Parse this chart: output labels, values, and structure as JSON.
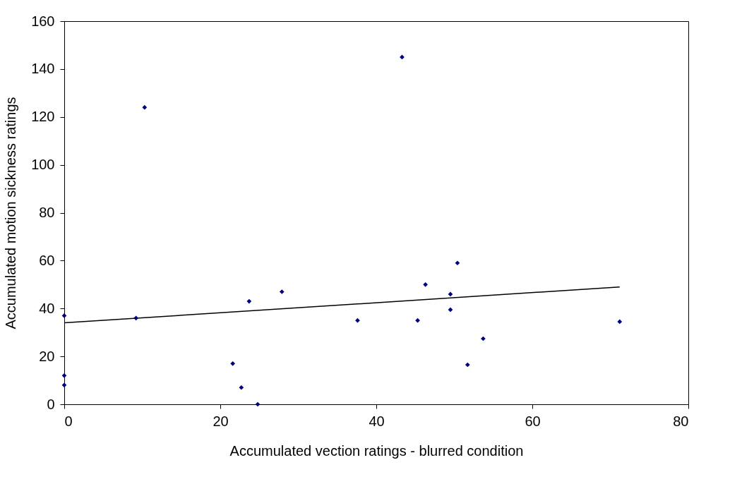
{
  "chart_data": {
    "type": "scatter",
    "xlabel": "Accumulated vection ratings - blurred condition",
    "ylabel": "Accumulated motion sickness ratings",
    "xlim": [
      0,
      80
    ],
    "xticks": [
      0,
      20,
      40,
      60,
      80
    ],
    "ylim": [
      0,
      160
    ],
    "yticks": [
      0,
      20,
      40,
      60,
      80,
      100,
      120,
      140,
      160
    ],
    "grid": false,
    "series": [
      {
        "color": "#000080",
        "marker": "diamond",
        "x": [
          0,
          0,
          0,
          9.2,
          10.3,
          21.6,
          22.7,
          23.7,
          24.8,
          27.9,
          37.6,
          43.3,
          45.3,
          46.3,
          49.5,
          49.5,
          50.4,
          51.7,
          53.7,
          71.2
        ],
        "values": [
          37,
          12,
          8,
          36,
          124,
          17,
          7,
          43,
          0,
          47,
          35,
          145,
          35,
          50,
          46,
          39.5,
          59,
          16.5,
          27.4,
          34.5
        ]
      },
      {
        "type": "line",
        "color": "#000000",
        "marker": "none",
        "x": [
          0,
          71.2
        ],
        "values": [
          34,
          49
        ]
      }
    ]
  }
}
